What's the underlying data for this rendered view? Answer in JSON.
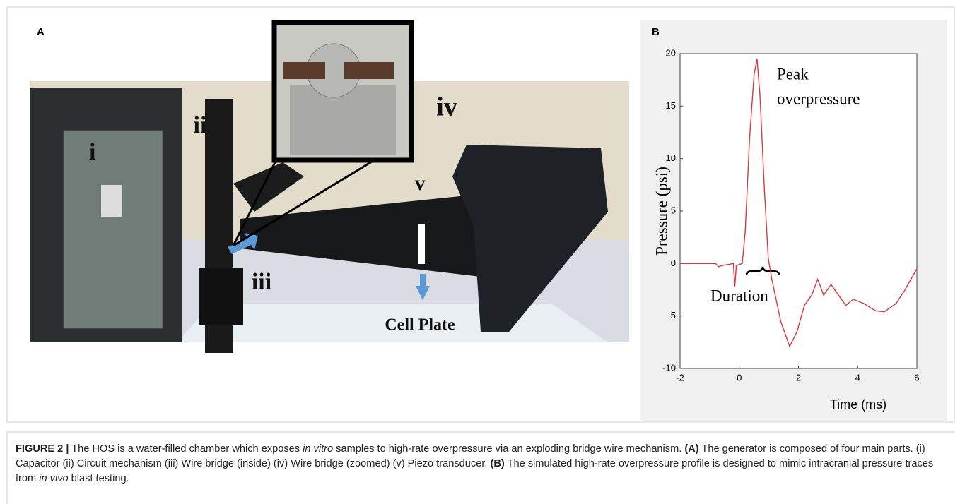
{
  "panel_a": {
    "label": "A",
    "photo_labels": [
      "i",
      "ii",
      "iii",
      "iv",
      "v"
    ],
    "cell_plate": "Cell Plate"
  },
  "chart_data": {
    "type": "line",
    "panel_label": "B",
    "xlabel": "Time (ms)",
    "ylabel": "Pressure (psi)",
    "annotations": {
      "peak": [
        "Peak",
        "overpressure"
      ],
      "duration": "Duration"
    },
    "x": [
      -2,
      -0.8,
      -0.7,
      -0.6,
      -0.4,
      -0.2,
      -0.15,
      -0.1,
      0.1,
      0.2,
      0.35,
      0.5,
      0.6,
      0.7,
      0.85,
      0.98,
      1.1,
      1.4,
      1.7,
      1.95,
      2.2,
      2.45,
      2.65,
      2.85,
      3.1,
      3.35,
      3.6,
      3.85,
      4.2,
      4.6,
      4.9,
      5.3,
      5.6,
      6
    ],
    "series": [
      {
        "color": "#e0363c",
        "values": [
          0,
          0,
          -0.3,
          -0.2,
          -0.1,
          0,
          -2.2,
          -0.2,
          0,
          3,
          12,
          18,
          19.5,
          16,
          7,
          0.5,
          -1.5,
          -5.5,
          -7.9,
          -6.5,
          -4,
          -3,
          -1.5,
          -3,
          -2,
          -3,
          -4,
          -3.4,
          -3.8,
          -4.5,
          -4.6,
          -3.8,
          -2.5,
          -0.5
        ]
      }
    ],
    "xlim": [
      -2,
      6
    ],
    "xticks": [
      -2,
      0,
      2,
      4,
      6
    ],
    "ylim": [
      -10,
      20
    ],
    "yticks": [
      -10,
      -5,
      0,
      5,
      10,
      15,
      20
    ]
  },
  "caption": {
    "parts": [
      "FIGURE 2 |",
      " The HOS is a water-filled chamber which exposes ",
      "in vitro",
      " samples to high-rate overpressure via an exploding bridge wire mechanism. ",
      "(A)",
      " The generator is composed of four main parts. (i) Capacitor (ii) Circuit mechanism (iii) Wire bridge (inside) (iv) Wire bridge (zoomed) (v) Piezo transducer. ",
      "(B)",
      " The simulated high-rate overpressure profile is designed to mimic intracranial pressure traces from ",
      "in vivo",
      " blast testing."
    ]
  }
}
